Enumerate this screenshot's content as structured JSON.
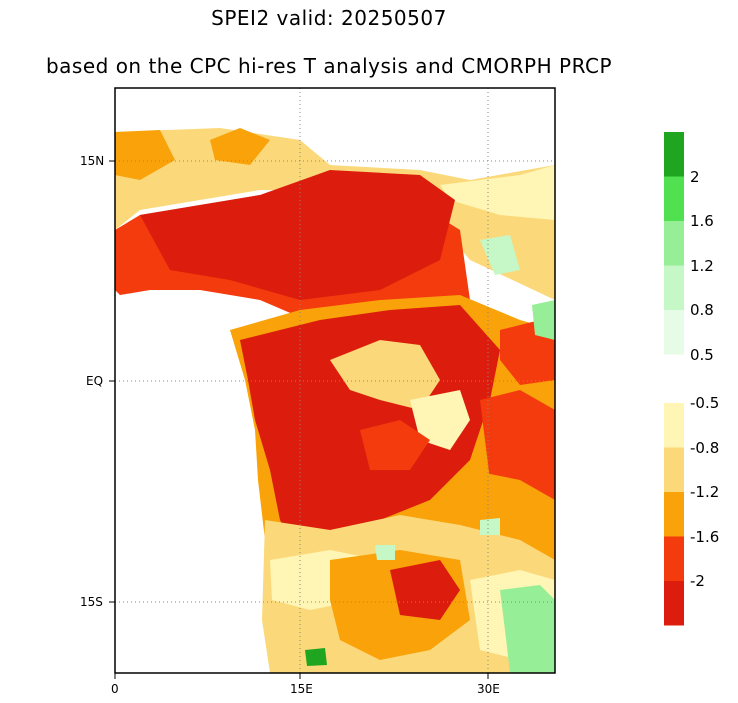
{
  "title": "SPEI2   valid: 20250507",
  "subtitle": "based on the CPC hi-res T analysis and CMORPH PRCP",
  "map": {
    "lat_labels": [
      "15N",
      "EQ",
      "15S"
    ],
    "lon_labels": [
      "0",
      "15E",
      "30E"
    ]
  },
  "colorbar": {
    "positive": [
      {
        "label": "2",
        "color": "#1fa51f"
      },
      {
        "label": "1.6",
        "color": "#50e050"
      },
      {
        "label": "1.2",
        "color": "#96ee96"
      },
      {
        "label": "0.8",
        "color": "#c6f7c6"
      },
      {
        "label": "0.5",
        "color": "#e6fce6"
      }
    ],
    "negative": [
      {
        "label": "-0.5",
        "color": "#fff5b4"
      },
      {
        "label": "-0.8",
        "color": "#fbd97a"
      },
      {
        "label": "-1.2",
        "color": "#f9a20a"
      },
      {
        "label": "-1.6",
        "color": "#f43b0d"
      },
      {
        "label": "-2",
        "color": "#dc1c0c"
      }
    ]
  }
}
